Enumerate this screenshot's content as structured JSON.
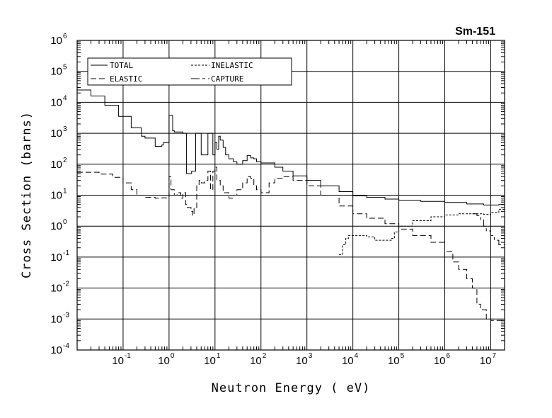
{
  "chart_data": {
    "type": "line",
    "title": "Sm-151",
    "xlabel": "Neutron Energy ( eV)",
    "ylabel": "Cross Section (barns)",
    "x_scale": "log",
    "y_scale": "log",
    "xlim": [
      0.01,
      20000000
    ],
    "ylim": [
      0.0001,
      1000000
    ],
    "grid": true,
    "legend_position": "top-left",
    "x_ticks": [
      {
        "base": "10",
        "exp": "-1",
        "value": 0.1
      },
      {
        "base": "10",
        "exp": "0",
        "value": 1
      },
      {
        "base": "10",
        "exp": "1",
        "value": 10
      },
      {
        "base": "10",
        "exp": "2",
        "value": 100
      },
      {
        "base": "10",
        "exp": "3",
        "value": 1000
      },
      {
        "base": "10",
        "exp": "4",
        "value": 10000
      },
      {
        "base": "10",
        "exp": "5",
        "value": 100000
      },
      {
        "base": "10",
        "exp": "6",
        "value": 1000000
      },
      {
        "base": "10",
        "exp": "7",
        "value": 10000000
      }
    ],
    "y_ticks": [
      {
        "base": "10",
        "exp": "6",
        "value": 1000000
      },
      {
        "base": "10",
        "exp": "5",
        "value": 100000
      },
      {
        "base": "10",
        "exp": "4",
        "value": 10000
      },
      {
        "base": "10",
        "exp": "3",
        "value": 1000
      },
      {
        "base": "10",
        "exp": "2",
        "value": 100
      },
      {
        "base": "10",
        "exp": "1",
        "value": 10
      },
      {
        "base": "10",
        "exp": "0",
        "value": 1
      },
      {
        "base": "10",
        "exp": "-1",
        "value": 0.1
      },
      {
        "base": "10",
        "exp": "-2",
        "value": 0.01
      },
      {
        "base": "10",
        "exp": "-3",
        "value": 0.001
      },
      {
        "base": "10",
        "exp": "-4",
        "value": 0.0001
      }
    ],
    "series": [
      {
        "name": "TOTAL",
        "dash": "solid",
        "x": [
          0.01,
          0.02,
          0.04,
          0.08,
          0.15,
          0.25,
          0.3,
          0.45,
          0.5,
          0.7,
          0.75,
          0.95,
          1.0,
          1.2,
          1.3,
          1.9,
          2.0,
          2.3,
          2.4,
          3.0,
          3.1,
          3.7,
          3.8,
          4.9,
          5.0,
          6.5,
          7.0,
          8.9,
          9.0,
          10.0,
          11.0,
          12.0,
          13.0,
          15.0,
          17.0,
          20.0,
          25.0,
          30.0,
          40.0,
          50.0,
          60.0,
          70.0,
          80.0,
          100.0,
          200.0,
          300.0,
          500.0,
          1000.0,
          2000.0,
          5000.0,
          10000.0,
          20000.0,
          50000.0,
          100000.0,
          300000.0,
          1000000.0,
          3000000.0,
          7000000.0,
          10000000.0,
          15000000.0,
          20000000.0
        ],
        "y": [
          25000,
          16000,
          8000,
          3500,
          1500,
          800,
          700,
          700,
          380,
          420,
          500,
          500,
          3800,
          1200,
          1100,
          1100,
          1000,
          1000,
          50,
          50,
          60,
          60,
          1000,
          1000,
          200,
          200,
          1000,
          1000,
          200,
          500,
          300,
          800,
          600,
          350,
          200,
          150,
          120,
          100,
          130,
          190,
          160,
          150,
          120,
          110,
          80,
          60,
          42,
          30,
          20,
          13,
          9.5,
          8.5,
          7.5,
          6.8,
          6.3,
          5.8,
          5.2,
          4.8,
          4.8,
          5.0,
          5.5
        ]
      },
      {
        "name": "ELASTIC",
        "dash": "8,4",
        "x": [
          0.01,
          0.03,
          0.06,
          0.1,
          0.15,
          0.2,
          0.3,
          0.5,
          0.7,
          0.9,
          1.0,
          1.1,
          1.3,
          1.5,
          1.8,
          2.0,
          2.3,
          2.5,
          3.0,
          3.3,
          3.5,
          4.0,
          4.5,
          5.0,
          6.0,
          7.0,
          8.0,
          9.0,
          10.0,
          11.0,
          13.0,
          15.0,
          20.0,
          25.0,
          30.0,
          40.0,
          50.0,
          60.0,
          70.0,
          80.0,
          100.0,
          150.0,
          200.0,
          300.0,
          500.0,
          1000.0,
          2000.0,
          5000.0,
          10000.0,
          20000.0,
          50000.0,
          100000.0,
          200000.0,
          500000.0,
          1000000.0,
          1500000.0,
          2000000.0,
          3000000.0,
          4000000.0,
          5000000.0,
          6000000.0,
          8000000.0,
          10000000.0,
          15000000.0,
          20000000.0
        ],
        "y": [
          55,
          48,
          38,
          25,
          15,
          10,
          8.5,
          8.0,
          8.2,
          8.5,
          40,
          15,
          10,
          12,
          8.0,
          12,
          5.0,
          4.0,
          3.0,
          2.2,
          4.0,
          20,
          30,
          25,
          30,
          60,
          15,
          60,
          80,
          30,
          20,
          12,
          8.0,
          10,
          15,
          25,
          40,
          35,
          20,
          15,
          12,
          25,
          35,
          40,
          30,
          20,
          10,
          4.5,
          2.5,
          1.8,
          1.2,
          0.8,
          0.5,
          0.3,
          0.15,
          0.07,
          0.04,
          0.02,
          0.01,
          0.003,
          0.002,
          0.001,
          0.0009,
          0.0009,
          0.001
        ]
      },
      {
        "name": "INELASTIC",
        "dash": "3,2",
        "x": [
          5000.0,
          6000.0,
          7000.0,
          8000.0,
          10000.0,
          20000.0,
          30000.0,
          50000.0,
          70000.0,
          80000.0,
          100000.0,
          200000.0,
          500000.0,
          1000000.0,
          2000000.0,
          3000000.0,
          5000000.0,
          7000000.0,
          10000000.0,
          15000000.0,
          20000000.0
        ],
        "y": [
          0.12,
          0.25,
          0.4,
          0.5,
          0.5,
          0.45,
          0.35,
          0.35,
          0.4,
          0.65,
          1.0,
          1.5,
          2.0,
          2.3,
          2.5,
          2.5,
          2.5,
          2.4,
          2.8,
          3.5,
          3.8
        ]
      },
      {
        "name": "CAPTURE",
        "dash": "12,4,4,4",
        "x": [
          4000000.0,
          5000000.0,
          6000000.0,
          7000000.0,
          8000000.0,
          10000000.0,
          12000000.0,
          15000000.0,
          20000000.0
        ],
        "y": [
          2.5,
          2.2,
          1.6,
          1.0,
          0.7,
          0.5,
          0.35,
          0.25,
          0.15
        ]
      }
    ]
  }
}
